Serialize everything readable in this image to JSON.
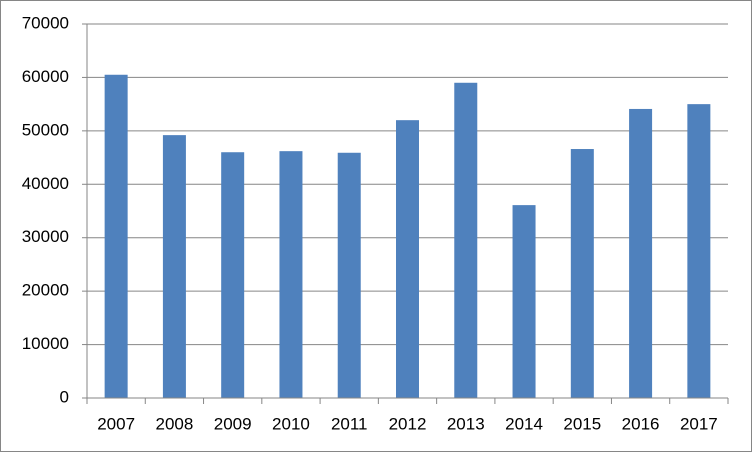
{
  "chart_data": {
    "type": "bar",
    "categories": [
      "2007",
      "2008",
      "2009",
      "2010",
      "2011",
      "2012",
      "2013",
      "2014",
      "2015",
      "2016",
      "2017"
    ],
    "values": [
      60500,
      49200,
      46000,
      46200,
      45900,
      52000,
      59000,
      36100,
      46600,
      54100,
      55000
    ],
    "color": "#4f81bd",
    "ylim": [
      0,
      70000
    ],
    "yticks": [
      0,
      10000,
      20000,
      30000,
      40000,
      50000,
      60000,
      70000
    ],
    "grid": true
  }
}
